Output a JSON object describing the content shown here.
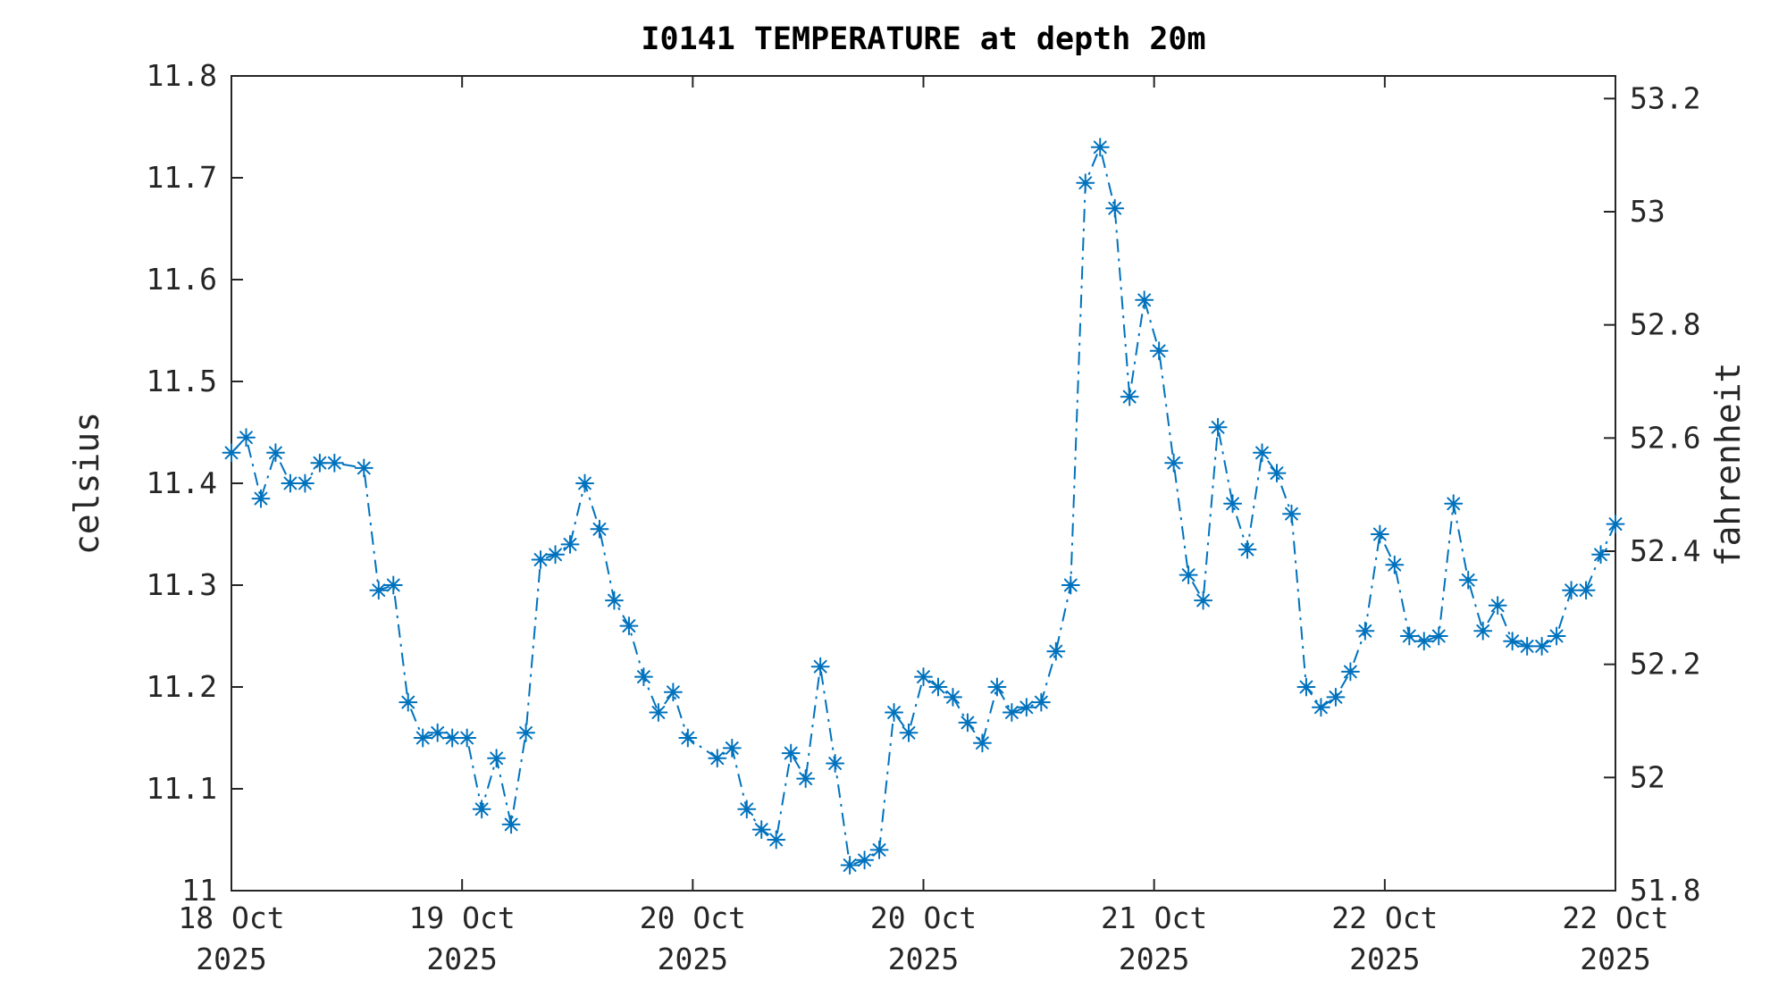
{
  "title": "I0141 TEMPERATURE at depth 20m",
  "left_axis": {
    "label": "celsius",
    "tick_labels": [
      "11",
      "11.1",
      "11.2",
      "11.3",
      "11.4",
      "11.5",
      "11.6",
      "11.7",
      "11.8"
    ],
    "tick_values": [
      11,
      11.1,
      11.2,
      11.3,
      11.4,
      11.5,
      11.6,
      11.7,
      11.8
    ],
    "min": 11,
    "max": 11.8
  },
  "right_axis": {
    "label": "fahrenheit",
    "tick_labels": [
      "51.8",
      "52",
      "52.2",
      "52.4",
      "52.6",
      "52.8",
      "53",
      "53.2"
    ],
    "tick_values_f": [
      51.8,
      52,
      52.2,
      52.4,
      52.6,
      52.8,
      53,
      53.2
    ]
  },
  "x_axis": {
    "tick_line1": [
      "18 Oct",
      "19 Oct",
      "20 Oct",
      "20 Oct",
      "21 Oct",
      "22 Oct",
      "22 Oct"
    ],
    "tick_line2": [
      "2025",
      "2025",
      "2025",
      "2025",
      "2025",
      "2025",
      "2025"
    ]
  },
  "chart_data": {
    "type": "line",
    "title": "I0141 TEMPERATURE at depth 20m",
    "xlabel": "",
    "ylabel_left": "celsius",
    "ylabel_right": "fahrenheit",
    "ylim_celsius": [
      11,
      11.8
    ],
    "x_tick_labels": [
      "18 Oct 2025",
      "19 Oct 2025",
      "20 Oct 2025",
      "20 Oct 2025",
      "21 Oct 2025",
      "22 Oct 2025",
      "22 Oct 2025"
    ],
    "grid": false,
    "legend": "none",
    "series": [
      {
        "name": "temperature_celsius_at_20m",
        "color": "#0072BD",
        "line_style": "dash-dot",
        "marker": "asterisk",
        "note": "values are evenly spaced in time across the x-range; null = missing sample",
        "values": [
          11.43,
          11.445,
          11.385,
          11.43,
          11.4,
          11.4,
          11.42,
          11.42,
          null,
          11.415,
          11.295,
          11.3,
          11.185,
          11.15,
          11.155,
          11.15,
          11.15,
          11.08,
          11.13,
          11.065,
          11.155,
          11.325,
          11.33,
          11.34,
          11.4,
          11.355,
          11.285,
          11.26,
          11.21,
          11.175,
          11.195,
          11.15,
          null,
          11.13,
          11.14,
          11.08,
          11.06,
          11.05,
          11.135,
          11.11,
          11.22,
          11.125,
          11.025,
          11.03,
          11.04,
          11.175,
          11.155,
          11.21,
          11.2,
          11.19,
          11.165,
          11.145,
          11.2,
          11.175,
          11.18,
          11.185,
          11.235,
          11.3,
          11.695,
          11.73,
          11.67,
          11.485,
          11.58,
          11.53,
          11.42,
          11.31,
          11.285,
          11.455,
          11.38,
          11.335,
          11.43,
          11.41,
          11.37,
          11.2,
          11.18,
          11.19,
          11.215,
          11.255,
          11.35,
          11.32,
          11.25,
          11.245,
          11.25,
          11.38,
          11.305,
          11.255,
          11.28,
          11.245,
          11.24,
          11.24,
          11.25,
          11.295,
          11.295,
          11.33,
          11.36
        ]
      }
    ]
  },
  "style": {
    "axis_color": "#262626",
    "line_color": "#0072BD",
    "background": "#ffffff"
  }
}
